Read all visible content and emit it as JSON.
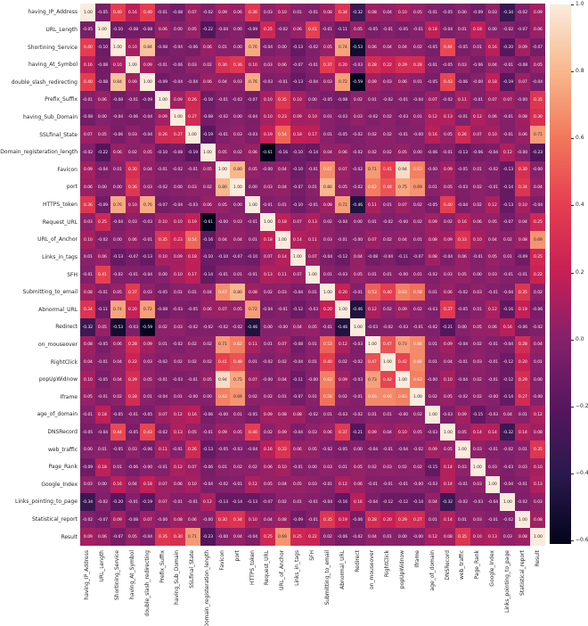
{
  "figure": {
    "background_color": "#ffffff",
    "tick_label_color": "#262626",
    "annot_dark_text": "#262626",
    "annot_light_text": "#ffffff"
  },
  "chart_data": {
    "type": "heatmap",
    "title": "",
    "xlabel": "",
    "ylabel": "",
    "annotated": true,
    "vmin": -0.61,
    "vmax": 1.0,
    "legend_position": "right-colorbar",
    "colorbar_ticks": [
      {
        "value": 1.0,
        "label": "1.0"
      },
      {
        "value": 0.8,
        "label": "0.8"
      },
      {
        "value": 0.6,
        "label": "0.6"
      },
      {
        "value": 0.4,
        "label": "0.4"
      },
      {
        "value": 0.2,
        "label": "0.2"
      },
      {
        "value": 0.0,
        "label": "0.0"
      },
      {
        "value": -0.2,
        "label": "−0.2"
      },
      {
        "value": -0.4,
        "label": "−0.4"
      },
      {
        "value": -0.6,
        "label": "−0.6"
      }
    ],
    "colormap": {
      "name": "rocket",
      "stops": [
        [
          0.0,
          "#03041C"
        ],
        [
          0.13,
          "#2B194D"
        ],
        [
          0.25,
          "#56165E"
        ],
        [
          0.38,
          "#85216B"
        ],
        [
          0.5,
          "#C51F55"
        ],
        [
          0.63,
          "#E63E50"
        ],
        [
          0.75,
          "#F1765B"
        ],
        [
          0.875,
          "#F8B78B"
        ],
        [
          1.0,
          "#FAEBDD"
        ]
      ]
    },
    "labels": [
      "having_IP_Address",
      "URL_Length",
      "Shortining_Service",
      "having_At_Symbol",
      "double_slash_redirecting",
      "Prefix_Suffix",
      "having_Sub_Domain",
      "SSLfinal_State",
      "Domain_registeration_length",
      "Favicon",
      "port",
      "HTTPS_token",
      "Request_URL",
      "URL_of_Anchor",
      "Links_in_tags",
      "SFH",
      "Submitting_to_email",
      "Abnormal_URL",
      "Redirect",
      "on_mouseover",
      "RightClick",
      "popUpWidnow",
      "Iframe",
      "age_of_domain",
      "DNSRecord",
      "web_traffic",
      "Page_Rank",
      "Google_Index",
      "Links_pointing_to_page",
      "Statistical_report",
      "Result"
    ],
    "matrix": [
      [
        "1.00",
        "-0.05",
        "0.40",
        "0.16",
        "0.40",
        "-0.01",
        "-0.08",
        "0.07",
        "-0.02",
        "0.09",
        "0.06",
        "0.36",
        "0.03",
        "0.10",
        "0.01",
        "-0.01",
        "0.08",
        "0.34",
        "-0.32",
        "0.08",
        "0.04",
        "0.10",
        "0.05",
        "-0.01",
        "-0.05",
        "0.00",
        "-0.09",
        "0.03",
        "-0.34",
        "-0.02",
        "0.09"
      ],
      [
        "-0.05",
        "1.00",
        "-0.10",
        "-0.08",
        "-0.08",
        "0.06",
        "0.00",
        "0.05",
        "-0.22",
        "-0.04",
        "0.00",
        "-0.09",
        "0.25",
        "-0.02",
        "0.06",
        "0.41",
        "-0.01",
        "-0.11",
        "0.05",
        "-0.05",
        "-0.01",
        "-0.05",
        "-0.01",
        "0.18",
        "-0.04",
        "0.01",
        "0.18",
        "0.00",
        "-0.02",
        "-0.07",
        "0.06"
      ],
      [
        "0.40",
        "-0.10",
        "1.00",
        "0.10",
        "0.84",
        "-0.08",
        "-0.04",
        "-0.06",
        "0.06",
        "0.01",
        "0.00",
        "0.76",
        "-0.04",
        "0.00",
        "-0.13",
        "-0.02",
        "0.05",
        "0.74",
        "-0.53",
        "0.06",
        "0.04",
        "0.04",
        "0.02",
        "-0.05",
        "0.44",
        "-0.05",
        "0.01",
        "0.16",
        "-0.20",
        "0.09",
        "-0.07"
      ],
      [
        "0.16",
        "-0.08",
        "0.10",
        "1.00",
        "0.09",
        "-0.01",
        "-0.06",
        "0.03",
        "0.02",
        "0.30",
        "0.36",
        "0.10",
        "0.03",
        "0.06",
        "-0.07",
        "-0.01",
        "0.37",
        "0.20",
        "-0.03",
        "0.28",
        "0.22",
        "0.29",
        "0.28",
        "-0.01",
        "-0.05",
        "0.03",
        "-0.06",
        "0.04",
        "-0.01",
        "-0.08",
        "0.05"
      ],
      [
        "0.40",
        "-0.08",
        "0.84",
        "0.09",
        "1.00",
        "-0.09",
        "-0.04",
        "-0.04",
        "0.06",
        "0.04",
        "0.03",
        "0.76",
        "-0.03",
        "-0.01",
        "-0.13",
        "-0.04",
        "0.03",
        "0.72",
        "-0.59",
        "0.09",
        "0.03",
        "0.06",
        "0.01",
        "-0.05",
        "0.43",
        "-0.06",
        "-0.00",
        "0.18",
        "-0.19",
        "0.07",
        "-0.04"
      ],
      [
        "-0.01",
        "0.06",
        "-0.08",
        "-0.01",
        "-0.09",
        "1.00",
        "0.09",
        "0.26",
        "-0.10",
        "-0.01",
        "-0.02",
        "-0.07",
        "0.10",
        "0.35",
        "0.10",
        "0.00",
        "-0.05",
        "-0.08",
        "0.02",
        "0.01",
        "-0.02",
        "-0.01",
        "-0.04",
        "0.07",
        "-0.02",
        "0.11",
        "-0.01",
        "0.07",
        "0.07",
        "-0.00",
        "0.35"
      ],
      [
        "-0.08",
        "0.00",
        "-0.04",
        "-0.06",
        "-0.04",
        "0.09",
        "1.00",
        "0.27",
        "-0.08",
        "-0.02",
        "0.00",
        "-0.04",
        "0.10",
        "0.23",
        "0.09",
        "0.10",
        "0.01",
        "-0.03",
        "0.03",
        "-0.02",
        "0.02",
        "-0.03",
        "0.01",
        "0.12",
        "0.13",
        "-0.01",
        "0.12",
        "0.06",
        "-0.01",
        "0.08",
        "0.30"
      ],
      [
        "0.07",
        "0.05",
        "-0.06",
        "0.03",
        "-0.04",
        "0.26",
        "0.27",
        "1.00",
        "-0.19",
        "-0.01",
        "0.03",
        "-0.03",
        "0.19",
        "0.54",
        "0.18",
        "0.17",
        "0.01",
        "-0.05",
        "-0.02",
        "0.02",
        "0.02",
        "-0.01",
        "-0.00",
        "0.16",
        "0.05",
        "0.26",
        "0.07",
        "0.10",
        "-0.01",
        "0.06",
        "0.71"
      ],
      [
        "-0.02",
        "-0.22",
        "0.06",
        "0.02",
        "0.05",
        "-0.10",
        "-0.08",
        "-0.19",
        "1.00",
        "0.05",
        "0.02",
        "0.06",
        "-0.61",
        "-0.16",
        "-0.10",
        "-0.14",
        "0.04",
        "0.06",
        "-0.02",
        "0.02",
        "0.02",
        "0.05",
        "0.00",
        "-0.06",
        "-0.01",
        "-0.13",
        "-0.06",
        "-0.04",
        "0.12",
        "-0.00",
        "-0.23"
      ],
      [
        "0.09",
        "-0.04",
        "0.01",
        "0.30",
        "0.04",
        "-0.01",
        "-0.02",
        "-0.01",
        "0.05",
        "1.00",
        "0.80",
        "0.05",
        "-0.00",
        "0.04",
        "-0.10",
        "-0.01",
        "0.67",
        "0.07",
        "-0.02",
        "0.71",
        "0.41",
        "0.94",
        "0.63",
        "-0.00",
        "0.09",
        "-0.05",
        "0.01",
        "-0.02",
        "-0.13",
        "0.30",
        "-0.00"
      ],
      [
        "0.06",
        "0.00",
        "0.00",
        "0.36",
        "0.03",
        "-0.02",
        "0.00",
        "0.03",
        "0.02",
        "0.80",
        "1.00",
        "0.00",
        "0.03",
        "0.04",
        "-0.07",
        "0.01",
        "0.80",
        "0.05",
        "-0.02",
        "0.62",
        "0.48",
        "0.75",
        "0.69",
        "0.01",
        "0.05",
        "-0.03",
        "0.02",
        "-0.01",
        "-0.14",
        "0.34",
        "0.04"
      ],
      [
        "0.36",
        "-0.09",
        "0.76",
        "0.10",
        "0.76",
        "-0.07",
        "-0.04",
        "-0.03",
        "0.06",
        "0.05",
        "0.00",
        "1.00",
        "-0.01",
        "0.01",
        "-0.10",
        "-0.01",
        "0.08",
        "0.72",
        "-0.46",
        "0.11",
        "0.01",
        "0.07",
        "0.02",
        "-0.05",
        "0.40",
        "-0.04",
        "0.02",
        "0.12",
        "-0.13",
        "0.10",
        "-0.04"
      ],
      [
        "0.03",
        "0.25",
        "-0.04",
        "0.03",
        "-0.03",
        "0.10",
        "0.10",
        "0.19",
        "-0.61",
        "-0.00",
        "0.03",
        "-0.01",
        "1.00",
        "0.18",
        "0.07",
        "0.13",
        "0.02",
        "-0.04",
        "0.00",
        "0.01",
        "-0.02",
        "-0.00",
        "0.02",
        "0.09",
        "0.02",
        "0.16",
        "0.06",
        "0.05",
        "-0.07",
        "0.04",
        "0.25"
      ],
      [
        "0.10",
        "-0.02",
        "0.00",
        "0.06",
        "-0.01",
        "0.35",
        "0.23",
        "0.54",
        "-0.16",
        "0.04",
        "0.04",
        "0.01",
        "0.18",
        "1.00",
        "0.14",
        "0.11",
        "0.03",
        "-0.01",
        "-0.00",
        "0.07",
        "0.02",
        "0.04",
        "0.01",
        "0.08",
        "0.09",
        "0.33",
        "0.10",
        "0.04",
        "0.02",
        "0.08",
        "0.69"
      ],
      [
        "0.01",
        "0.06",
        "-0.13",
        "-0.07",
        "-0.13",
        "0.10",
        "0.09",
        "0.18",
        "-0.10",
        "-0.10",
        "-0.07",
        "-0.10",
        "0.07",
        "0.14",
        "1.00",
        "0.07",
        "-0.04",
        "-0.12",
        "0.04",
        "-0.08",
        "-0.04",
        "-0.11",
        "-0.07",
        "0.08",
        "-0.04",
        "0.06",
        "-0.01",
        "0.05",
        "0.01",
        "-0.09",
        "0.25"
      ],
      [
        "-0.01",
        "0.41",
        "-0.02",
        "-0.01",
        "-0.04",
        "0.00",
        "0.10",
        "0.17",
        "-0.14",
        "-0.01",
        "0.01",
        "-0.01",
        "0.13",
        "0.11",
        "0.07",
        "1.00",
        "0.01",
        "-0.03",
        "0.05",
        "0.01",
        "0.01",
        "-0.00",
        "0.01",
        "-0.02",
        "0.03",
        "0.05",
        "0.00",
        "0.03",
        "-0.01",
        "-0.01",
        "0.22"
      ],
      [
        "0.08",
        "-0.01",
        "0.05",
        "0.37",
        "0.03",
        "-0.05",
        "0.01",
        "0.01",
        "0.04",
        "0.67",
        "0.80",
        "0.08",
        "0.02",
        "0.03",
        "-0.04",
        "0.01",
        "1.00",
        "0.20",
        "-0.01",
        "0.53",
        "0.40",
        "0.63",
        "0.58",
        "0.01",
        "0.06",
        "-0.02",
        "0.03",
        "-0.01",
        "-0.04",
        "0.35",
        "0.02"
      ],
      [
        "0.34",
        "-0.11",
        "0.74",
        "0.20",
        "0.72",
        "-0.08",
        "-0.03",
        "-0.05",
        "0.06",
        "0.07",
        "0.05",
        "0.72",
        "-0.04",
        "-0.01",
        "-0.12",
        "-0.03",
        "0.20",
        "1.00",
        "-0.46",
        "0.12",
        "0.02",
        "0.09",
        "0.02",
        "-0.03",
        "0.37",
        "-0.05",
        "0.01",
        "0.12",
        "-0.16",
        "0.19",
        "-0.06"
      ],
      [
        "-0.32",
        "0.05",
        "-0.53",
        "-0.03",
        "-0.59",
        "0.02",
        "0.03",
        "-0.02",
        "-0.02",
        "-0.02",
        "-0.02",
        "-0.46",
        "0.00",
        "-0.00",
        "0.04",
        "0.05",
        "-0.01",
        "-0.46",
        "1.00",
        "-0.03",
        "-0.02",
        "-0.03",
        "-0.01",
        "-0.02",
        "-0.21",
        "0.00",
        "0.05",
        "0.06",
        "0.16",
        "-0.06",
        "-0.02"
      ],
      [
        "0.08",
        "-0.05",
        "0.06",
        "0.28",
        "0.09",
        "0.01",
        "-0.02",
        "0.02",
        "0.02",
        "0.71",
        "0.62",
        "0.11",
        "0.01",
        "0.07",
        "-0.08",
        "0.01",
        "0.53",
        "0.12",
        "-0.03",
        "1.00",
        "0.47",
        "0.73",
        "0.66",
        "0.01",
        "0.09",
        "-0.04",
        "0.02",
        "-0.01",
        "-0.04",
        "0.28",
        "0.04"
      ],
      [
        "0.04",
        "-0.01",
        "0.04",
        "0.22",
        "0.03",
        "-0.02",
        "0.02",
        "0.02",
        "0.02",
        "0.41",
        "0.48",
        "0.01",
        "-0.02",
        "0.02",
        "-0.04",
        "0.01",
        "0.40",
        "0.02",
        "-0.02",
        "0.47",
        "1.00",
        "0.42",
        "0.66",
        "0.01",
        "0.04",
        "-0.01",
        "0.03",
        "-0.01",
        "-0.12",
        "0.20",
        "0.01"
      ],
      [
        "0.10",
        "-0.05",
        "0.04",
        "0.29",
        "0.05",
        "-0.01",
        "-0.03",
        "-0.01",
        "0.05",
        "0.94",
        "0.75",
        "0.07",
        "-0.00",
        "0.04",
        "-0.11",
        "-0.00",
        "0.63",
        "0.09",
        "-0.03",
        "0.73",
        "0.42",
        "1.00",
        "0.63",
        "-0.00",
        "0.10",
        "-0.04",
        "0.02",
        "-0.01",
        "-0.12",
        "0.29",
        "0.00"
      ],
      [
        "0.05",
        "-0.01",
        "0.02",
        "0.28",
        "0.01",
        "-0.04",
        "0.01",
        "-0.00",
        "0.00",
        "0.63",
        "0.69",
        "0.02",
        "0.02",
        "0.01",
        "-0.07",
        "0.01",
        "0.58",
        "0.02",
        "-0.01",
        "0.66",
        "0.66",
        "0.63",
        "1.00",
        "0.02",
        "0.05",
        "-0.02",
        "0.02",
        "-0.00",
        "-0.14",
        "0.27",
        "-0.00"
      ],
      [
        "-0.01",
        "0.18",
        "-0.05",
        "-0.01",
        "-0.05",
        "0.07",
        "0.12",
        "0.16",
        "-0.06",
        "-0.00",
        "0.01",
        "-0.05",
        "0.09",
        "0.08",
        "0.08",
        "-0.02",
        "0.01",
        "-0.03",
        "-0.02",
        "0.01",
        "0.01",
        "-0.00",
        "0.02",
        "1.00",
        "-0.03",
        "0.09",
        "-0.15",
        "-0.03",
        "0.04",
        "0.01",
        "0.12"
      ],
      [
        "-0.05",
        "-0.04",
        "0.44",
        "-0.05",
        "0.43",
        "-0.02",
        "0.13",
        "0.05",
        "-0.01",
        "0.09",
        "0.05",
        "0.40",
        "0.02",
        "0.09",
        "-0.04",
        "0.03",
        "0.06",
        "0.37",
        "-0.21",
        "0.09",
        "0.04",
        "0.10",
        "0.05",
        "-0.03",
        "1.00",
        "0.05",
        "0.14",
        "0.14",
        "-0.32",
        "0.14",
        "0.08"
      ],
      [
        "0.00",
        "0.01",
        "-0.05",
        "0.03",
        "-0.06",
        "0.11",
        "-0.01",
        "0.26",
        "-0.13",
        "-0.05",
        "-0.03",
        "-0.04",
        "0.16",
        "0.33",
        "0.06",
        "0.05",
        "-0.02",
        "-0.05",
        "0.00",
        "-0.04",
        "-0.01",
        "-0.04",
        "-0.02",
        "0.09",
        "0.05",
        "1.00",
        "0.03",
        "-0.01",
        "-0.02",
        "0.01",
        "0.35"
      ],
      [
        "-0.09",
        "0.18",
        "0.01",
        "-0.06",
        "-0.00",
        "-0.01",
        "0.12",
        "0.07",
        "-0.06",
        "0.01",
        "0.02",
        "0.02",
        "0.06",
        "0.10",
        "-0.01",
        "0.00",
        "0.03",
        "0.01",
        "0.05",
        "0.02",
        "0.03",
        "0.02",
        "0.02",
        "-0.15",
        "0.14",
        "0.03",
        "1.00",
        "0.03",
        "-0.03",
        "0.03",
        "0.10"
      ],
      [
        "0.03",
        "0.00",
        "0.16",
        "0.04",
        "0.18",
        "0.07",
        "0.06",
        "0.10",
        "-0.04",
        "-0.02",
        "-0.01",
        "0.12",
        "0.05",
        "0.04",
        "0.05",
        "0.03",
        "-0.01",
        "0.12",
        "0.06",
        "-0.01",
        "-0.01",
        "-0.01",
        "-0.00",
        "-0.03",
        "0.14",
        "-0.01",
        "0.03",
        "1.00",
        "-0.04",
        "-0.01",
        "0.13"
      ],
      [
        "-0.34",
        "-0.02",
        "-0.20",
        "-0.01",
        "-0.19",
        "0.07",
        "-0.01",
        "-0.01",
        "0.12",
        "-0.13",
        "-0.14",
        "-0.13",
        "-0.07",
        "0.02",
        "0.01",
        "-0.01",
        "-0.04",
        "-0.16",
        "0.16",
        "-0.04",
        "-0.12",
        "-0.12",
        "-0.14",
        "0.04",
        "-0.32",
        "-0.02",
        "-0.03",
        "-0.04",
        "1.00",
        "-0.02",
        "0.03"
      ],
      [
        "-0.02",
        "-0.07",
        "0.09",
        "-0.08",
        "0.07",
        "-0.00",
        "0.08",
        "0.06",
        "-0.00",
        "0.30",
        "0.34",
        "0.10",
        "0.04",
        "0.08",
        "-0.09",
        "-0.01",
        "0.35",
        "0.19",
        "-0.06",
        "0.28",
        "0.20",
        "0.29",
        "0.27",
        "0.01",
        "0.14",
        "0.01",
        "0.03",
        "-0.01",
        "-0.02",
        "1.00",
        "0.08"
      ],
      [
        "0.09",
        "0.06",
        "-0.07",
        "0.05",
        "-0.04",
        "0.35",
        "0.30",
        "0.71",
        "-0.23",
        "-0.00",
        "0.04",
        "-0.04",
        "0.25",
        "0.69",
        "0.25",
        "0.22",
        "0.02",
        "-0.06",
        "-0.02",
        "0.04",
        "0.01",
        "0.00",
        "-0.00",
        "0.12",
        "0.08",
        "0.35",
        "0.10",
        "0.13",
        "0.03",
        "0.08",
        "1.00"
      ]
    ]
  }
}
